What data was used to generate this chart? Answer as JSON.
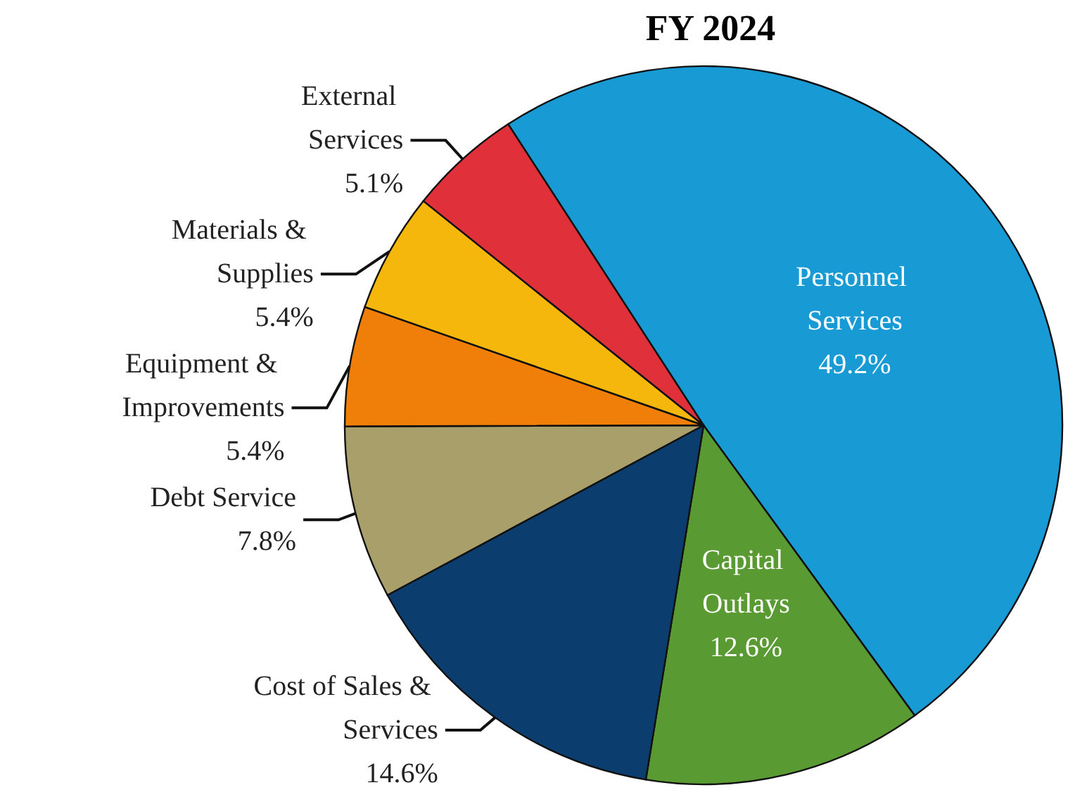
{
  "chart_data": {
    "type": "pie",
    "title": "FY 2024",
    "categories": [
      "Personnel Services",
      "Capital Outlays",
      "Cost of Sales & Services",
      "Debt Service",
      "Equipment & Improvements",
      "Materials & Supplies",
      "External Services"
    ],
    "values": [
      49.2,
      12.6,
      14.6,
      7.8,
      5.4,
      5.4,
      5.1
    ],
    "value_labels": [
      "49.2%",
      "12.6%",
      "14.6%",
      "7.8%",
      "5.4%",
      "5.4%",
      "5.1%"
    ],
    "colors": [
      "#189ad5",
      "#5a9a32",
      "#0b3d6e",
      "#a89f6a",
      "#f07f09",
      "#f5b70c",
      "#e0303a"
    ]
  }
}
